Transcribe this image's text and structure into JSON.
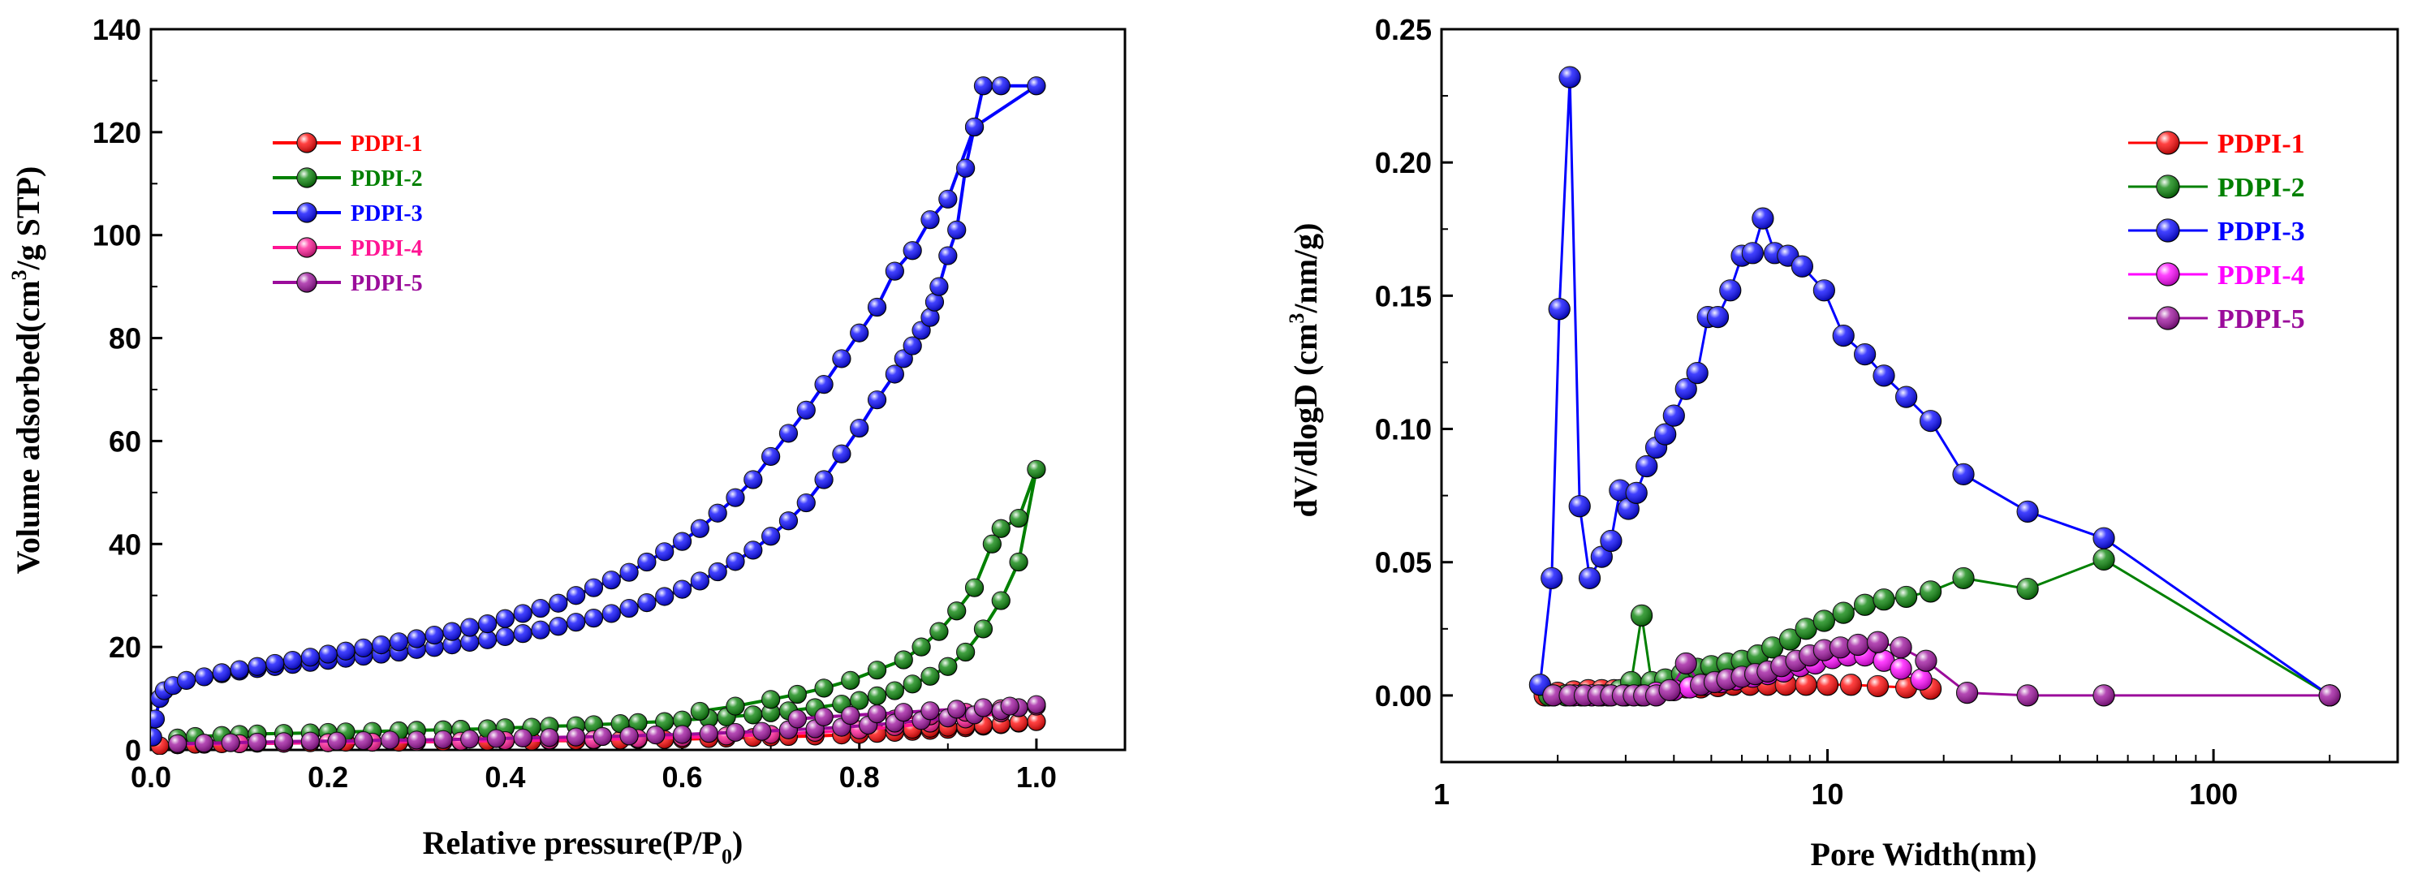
{
  "chart_data": [
    {
      "type": "line",
      "title": "",
      "xlabel": "Relative pressure(P/P0)",
      "ylabel": "Volume adsorbed(cm3/g STP)",
      "xlim": [
        0,
        1.1
      ],
      "ylim": [
        0,
        140
      ],
      "xticks": [
        "0.0",
        "0.2",
        "0.4",
        "0.6",
        "0.8",
        "1.0"
      ],
      "yticks": [
        "0",
        "20",
        "40",
        "60",
        "80",
        "100",
        "120",
        "140"
      ],
      "legend_position": "top-left",
      "series": [
        {
          "name": "PDPI-1",
          "color": "#ff0000",
          "x": [
            0.01,
            0.03,
            0.05,
            0.08,
            0.1,
            0.12,
            0.15,
            0.18,
            0.2,
            0.22,
            0.25,
            0.28,
            0.3,
            0.33,
            0.35,
            0.38,
            0.4,
            0.43,
            0.45,
            0.48,
            0.5,
            0.53,
            0.55,
            0.58,
            0.6,
            0.63,
            0.65,
            0.68,
            0.7,
            0.72,
            0.75,
            0.78,
            0.8,
            0.82,
            0.84,
            0.86,
            0.88,
            0.9,
            0.92,
            0.94,
            0.96,
            0.98,
            1.0,
            0.98,
            0.96,
            0.94,
            0.92,
            0.9,
            0.88,
            0.86
          ],
          "y": [
            0.8,
            1.0,
            1.1,
            1.2,
            1.2,
            1.3,
            1.3,
            1.4,
            1.4,
            1.5,
            1.5,
            1.5,
            1.6,
            1.6,
            1.6,
            1.7,
            1.7,
            1.7,
            1.8,
            1.8,
            1.9,
            1.9,
            2.0,
            2.0,
            2.1,
            2.2,
            2.3,
            2.4,
            2.5,
            2.6,
            2.7,
            2.9,
            3.0,
            3.2,
            3.4,
            3.6,
            3.8,
            4.0,
            4.3,
            4.6,
            4.9,
            5.2,
            5.5,
            5.3,
            5.0,
            4.8,
            4.6,
            4.4,
            4.2,
            4.0
          ]
        },
        {
          "name": "PDPI-2",
          "color": "#008000",
          "x": [
            0.03,
            0.05,
            0.08,
            0.1,
            0.12,
            0.15,
            0.18,
            0.2,
            0.22,
            0.25,
            0.28,
            0.3,
            0.33,
            0.35,
            0.38,
            0.4,
            0.43,
            0.45,
            0.48,
            0.5,
            0.53,
            0.55,
            0.58,
            0.6,
            0.63,
            0.65,
            0.68,
            0.7,
            0.72,
            0.75,
            0.78,
            0.8,
            0.82,
            0.84,
            0.86,
            0.88,
            0.9,
            0.92,
            0.94,
            0.96,
            0.98,
            1.0,
            0.98,
            0.96,
            0.95,
            0.93,
            0.91,
            0.89,
            0.87,
            0.85,
            0.82,
            0.79,
            0.76,
            0.73,
            0.7,
            0.66,
            0.62
          ],
          "y": [
            2.3,
            2.6,
            2.8,
            3.0,
            3.1,
            3.2,
            3.3,
            3.4,
            3.5,
            3.6,
            3.7,
            3.8,
            3.9,
            4.0,
            4.1,
            4.3,
            4.4,
            4.6,
            4.7,
            4.9,
            5.1,
            5.3,
            5.5,
            5.8,
            6.1,
            6.4,
            6.8,
            7.2,
            7.6,
            8.2,
            8.9,
            9.6,
            10.5,
            11.5,
            12.8,
            14.3,
            16.2,
            19.0,
            23.5,
            29.0,
            36.5,
            54.5,
            45.0,
            43.0,
            40.0,
            31.5,
            27.0,
            23.0,
            20.0,
            17.5,
            15.5,
            13.5,
            12.0,
            10.8,
            9.8,
            8.5,
            7.5
          ]
        },
        {
          "name": "PDPI-3",
          "color": "#0000ff",
          "x": [
            0.002,
            0.005,
            0.01,
            0.015,
            0.025,
            0.04,
            0.06,
            0.08,
            0.1,
            0.12,
            0.14,
            0.16,
            0.18,
            0.2,
            0.22,
            0.24,
            0.26,
            0.28,
            0.3,
            0.32,
            0.34,
            0.36,
            0.38,
            0.4,
            0.42,
            0.44,
            0.46,
            0.48,
            0.5,
            0.52,
            0.54,
            0.56,
            0.58,
            0.6,
            0.62,
            0.64,
            0.66,
            0.68,
            0.7,
            0.72,
            0.74,
            0.76,
            0.78,
            0.8,
            0.82,
            0.84,
            0.85,
            0.86,
            0.87,
            0.88,
            0.885,
            0.89,
            0.9,
            0.91,
            0.92,
            0.93,
            0.94,
            0.96,
            1.0,
            0.93,
            0.9,
            0.88,
            0.86,
            0.84,
            0.82,
            0.8,
            0.78,
            0.76,
            0.74,
            0.72,
            0.7,
            0.68,
            0.66,
            0.64,
            0.62,
            0.6,
            0.58,
            0.56,
            0.54,
            0.52,
            0.5,
            0.48,
            0.46,
            0.44,
            0.42,
            0.4,
            0.38,
            0.36,
            0.34,
            0.32,
            0.3,
            0.28,
            0.26,
            0.24,
            0.22,
            0.2,
            0.18,
            0.16,
            0.14,
            0.12,
            0.1,
            0.08
          ],
          "y": [
            2.5,
            6.0,
            10.0,
            11.5,
            12.5,
            13.5,
            14.2,
            14.8,
            15.3,
            15.8,
            16.2,
            16.6,
            17.0,
            17.4,
            17.8,
            18.2,
            18.6,
            19.0,
            19.5,
            19.9,
            20.4,
            20.9,
            21.4,
            22.0,
            22.6,
            23.3,
            24.0,
            24.8,
            25.6,
            26.5,
            27.5,
            28.6,
            29.8,
            31.2,
            32.8,
            34.6,
            36.6,
            38.8,
            41.5,
            44.5,
            48.0,
            52.5,
            57.5,
            62.5,
            68.0,
            73.0,
            76.0,
            78.5,
            81.5,
            84.0,
            87.0,
            90.0,
            96.0,
            101.0,
            113.0,
            121.0,
            129.0,
            129.0,
            129.0,
            121.0,
            107.0,
            103.0,
            97.0,
            93.0,
            86.0,
            81.0,
            76.0,
            71.0,
            66.0,
            61.5,
            57.0,
            52.5,
            49.0,
            46.0,
            43.0,
            40.5,
            38.5,
            36.5,
            34.5,
            33.0,
            31.5,
            30.0,
            28.5,
            27.5,
            26.5,
            25.5,
            24.5,
            23.8,
            23.0,
            22.3,
            21.6,
            21.0,
            20.4,
            19.8,
            19.2,
            18.6,
            18.0,
            17.4,
            16.8,
            16.2,
            15.6,
            15.0
          ]
        },
        {
          "name": "PDPI-4",
          "color": "#ff1493",
          "x": [
            0.03,
            0.06,
            0.1,
            0.15,
            0.2,
            0.25,
            0.3,
            0.35,
            0.4,
            0.45,
            0.5,
            0.55,
            0.6,
            0.65,
            0.7,
            0.75,
            0.8,
            0.84,
            0.88,
            0.92,
            0.96,
            1.0,
            0.96,
            0.92,
            0.88,
            0.84
          ],
          "y": [
            1.0,
            1.1,
            1.2,
            1.3,
            1.4,
            1.5,
            1.6,
            1.7,
            1.8,
            1.9,
            2.0,
            2.2,
            2.4,
            2.7,
            3.0,
            3.4,
            3.9,
            4.5,
            5.2,
            6.0,
            7.2,
            8.5,
            8.0,
            7.3,
            6.6,
            6.0
          ]
        },
        {
          "name": "PDPI-5",
          "color": "#9b0c9b",
          "x": [
            0.03,
            0.06,
            0.09,
            0.12,
            0.15,
            0.18,
            0.21,
            0.24,
            0.27,
            0.3,
            0.33,
            0.36,
            0.39,
            0.42,
            0.45,
            0.48,
            0.51,
            0.54,
            0.57,
            0.6,
            0.63,
            0.66,
            0.69,
            0.72,
            0.75,
            0.78,
            0.81,
            0.84,
            0.87,
            0.9,
            0.93,
            0.96,
            0.98,
            1.0,
            0.97,
            0.94,
            0.91,
            0.88,
            0.85,
            0.82,
            0.79,
            0.76,
            0.73
          ],
          "y": [
            1.2,
            1.3,
            1.4,
            1.5,
            1.6,
            1.7,
            1.7,
            1.8,
            1.9,
            1.9,
            2.0,
            2.1,
            2.2,
            2.3,
            2.4,
            2.5,
            2.6,
            2.7,
            2.9,
            3.0,
            3.2,
            3.4,
            3.6,
            3.9,
            4.1,
            4.4,
            4.8,
            5.2,
            5.7,
            6.2,
            6.8,
            7.6,
            8.2,
            8.8,
            8.5,
            8.2,
            7.9,
            7.6,
            7.3,
            7.0,
            6.7,
            6.4,
            6.0
          ]
        }
      ]
    },
    {
      "type": "line",
      "title": "",
      "xlabel": "Pore Width(nm)",
      "ylabel": "dV/dlogD (cm3/nm/g)",
      "xscale": "log",
      "xlim": [
        1,
        300
      ],
      "ylim": [
        -0.025,
        0.25
      ],
      "xticks": [
        "1",
        "10",
        "100"
      ],
      "yticks": [
        "0.00",
        "0.05",
        "0.10",
        "0.15",
        "0.20",
        "0.25"
      ],
      "legend_position": "top-right",
      "series": [
        {
          "name": "PDPI-1",
          "color": "#ff0000",
          "x": [
            1.85,
            2.0,
            2.2,
            2.4,
            2.6,
            2.8,
            3.0,
            3.3,
            3.6,
            3.9,
            4.3,
            4.7,
            5.2,
            5.7,
            6.3,
            7.0,
            7.8,
            8.8,
            10.0,
            11.5,
            13.5,
            16.0,
            18.5
          ],
          "y": [
            0.0,
            0.001,
            0.0015,
            0.002,
            0.002,
            0.002,
            0.002,
            0.002,
            0.0025,
            0.003,
            0.003,
            0.003,
            0.0035,
            0.004,
            0.004,
            0.004,
            0.004,
            0.004,
            0.004,
            0.004,
            0.0035,
            0.003,
            0.0025
          ]
        },
        {
          "name": "PDPI-2",
          "color": "#008000",
          "x": [
            1.9,
            2.1,
            2.3,
            2.6,
            2.9,
            3.1,
            3.3,
            3.5,
            3.8,
            4.2,
            4.6,
            5.0,
            5.5,
            6.0,
            6.6,
            7.2,
            8.0,
            8.8,
            9.8,
            11.0,
            12.5,
            14.0,
            16.0,
            18.5,
            22.5,
            33.0,
            52.0,
            200.0
          ],
          "y": [
            0.0,
            0.0,
            0.0,
            0.0,
            0.002,
            0.005,
            0.03,
            0.005,
            0.006,
            0.008,
            0.01,
            0.011,
            0.012,
            0.013,
            0.015,
            0.018,
            0.021,
            0.025,
            0.028,
            0.031,
            0.034,
            0.036,
            0.037,
            0.039,
            0.044,
            0.04,
            0.051,
            0.0
          ]
        },
        {
          "name": "PDPI-3",
          "color": "#0000ff",
          "x": [
            1.8,
            1.93,
            2.02,
            2.15,
            2.28,
            2.42,
            2.6,
            2.75,
            2.9,
            3.05,
            3.2,
            3.4,
            3.6,
            3.8,
            4.0,
            4.3,
            4.6,
            4.9,
            5.2,
            5.6,
            6.0,
            6.4,
            6.8,
            7.3,
            7.9,
            8.6,
            9.8,
            11.0,
            12.5,
            14.0,
            16.0,
            18.5,
            22.5,
            33.0,
            52.0,
            200.0
          ],
          "y": [
            0.004,
            0.044,
            0.145,
            0.232,
            0.071,
            0.044,
            0.052,
            0.058,
            0.077,
            0.07,
            0.076,
            0.086,
            0.093,
            0.098,
            0.105,
            0.115,
            0.121,
            0.142,
            0.142,
            0.152,
            0.165,
            0.166,
            0.179,
            0.166,
            0.165,
            0.161,
            0.152,
            0.135,
            0.128,
            0.12,
            0.112,
            0.103,
            0.083,
            0.069,
            0.059,
            0.0
          ]
        },
        {
          "name": "PDPI-4",
          "color": "#ff00ff",
          "x": [
            1.95,
            2.2,
            2.45,
            2.7,
            3.0,
            3.3,
            3.6,
            4.0,
            4.4,
            4.8,
            5.3,
            5.8,
            6.4,
            7.0,
            7.7,
            8.5,
            9.3,
            10.3,
            11.3,
            12.5,
            14.0,
            15.5,
            17.5
          ],
          "y": [
            0.0,
            0.0,
            0.0,
            0.0,
            0.0,
            0.0,
            0.001,
            0.002,
            0.003,
            0.004,
            0.005,
            0.006,
            0.007,
            0.008,
            0.009,
            0.011,
            0.012,
            0.014,
            0.015,
            0.015,
            0.013,
            0.01,
            0.006
          ]
        },
        {
          "name": "PDPI-5",
          "color": "#9b0c9b",
          "x": [
            1.95,
            2.15,
            2.35,
            2.55,
            2.75,
            2.95,
            3.15,
            3.35,
            3.6,
            3.9,
            4.3,
            4.7,
            5.1,
            5.5,
            6.0,
            6.5,
            7.0,
            7.6,
            8.3,
            9.0,
            9.8,
            10.8,
            12.0,
            13.5,
            15.5,
            18.0,
            23.0,
            33.0,
            52.0,
            200.0
          ],
          "y": [
            0.0,
            0.0,
            0.0,
            0.0,
            0.0,
            0.0,
            0.0,
            0.0,
            0.0,
            0.002,
            0.012,
            0.004,
            0.005,
            0.006,
            0.007,
            0.008,
            0.009,
            0.011,
            0.013,
            0.015,
            0.017,
            0.018,
            0.019,
            0.02,
            0.018,
            0.013,
            0.001,
            0.0,
            0.0,
            0.0
          ]
        }
      ]
    }
  ]
}
